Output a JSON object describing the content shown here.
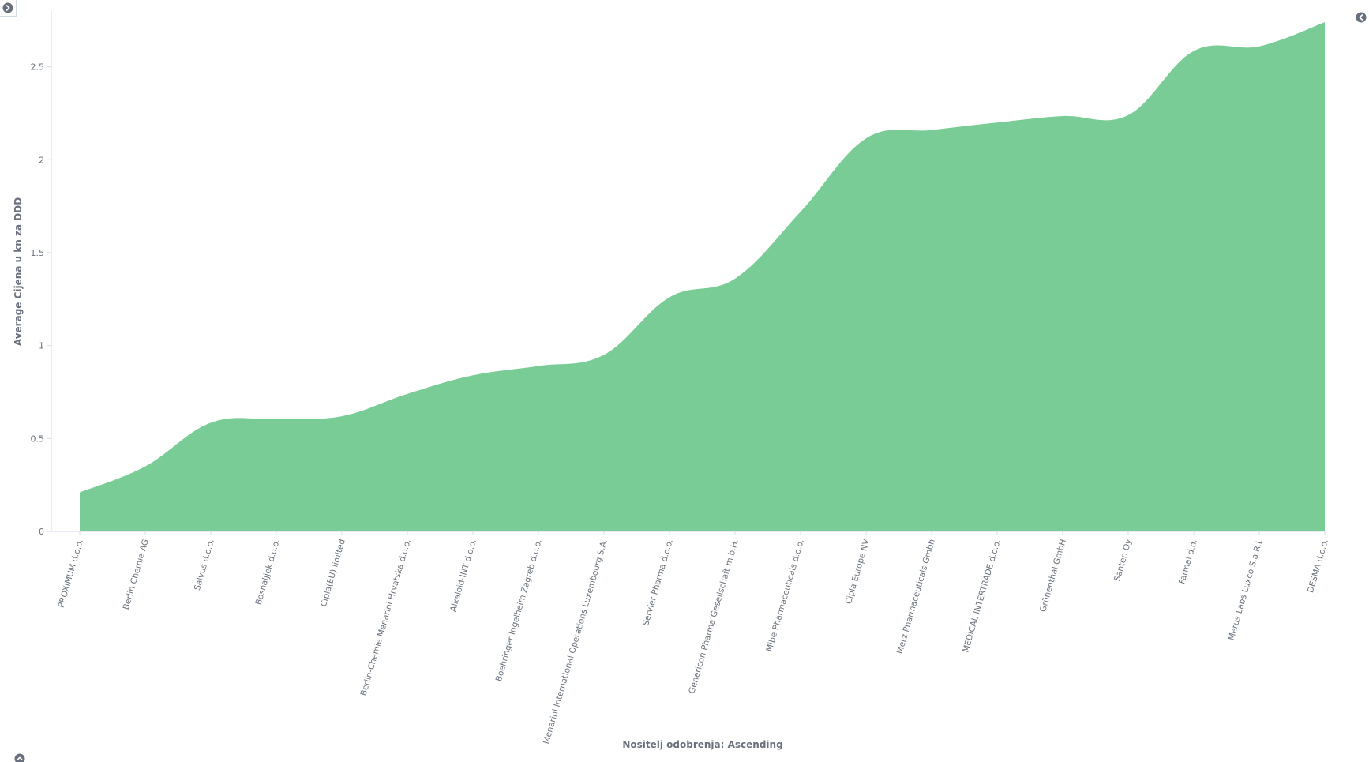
{
  "chart_data": {
    "type": "area",
    "ylabel": "Average Cijena u kn za DDD",
    "xlabel": "Nositelj odobrenja: Ascending",
    "ylim": [
      0,
      2.8
    ],
    "yticks": [
      0,
      0.5,
      1,
      1.5,
      2,
      2.5
    ],
    "ytick_labels": [
      "0",
      "0.5",
      "1",
      "1.5",
      "2",
      "2.5"
    ],
    "grid": false,
    "color": "#79cc95",
    "categories": [
      "PROXIMUM d.o.o.",
      "Berlin Chemie AG",
      "Salvus d.o.o.",
      "Bosnaljjek d.o.o.",
      "Cipla(EU) limited",
      "Berlin-Chemie Menarini Hrvatska d.o.o.",
      "Alkaloid-INT d.o.o.",
      "Boehringer Ingelheim Zagreb d.o.o.",
      "Menarini International Operations Luxembourg S.A.",
      "Servier Pharma d.o.o.",
      "Genericon Pharma Gesellschaft m.b.H.",
      "Mibe Pharmaceuticals d.o.o.",
      "Cipla Europe NV",
      "Merz Pharmaceuticals Gmbh",
      "MEDICAL INTERTRADE d.o.o.",
      "Grünenthal GmbH",
      "Santen Oy",
      "Farmal d.d.",
      "Merus Labs Luxco S.a.R.L",
      "DESMA d.o.o."
    ],
    "values": [
      0.21,
      0.35,
      0.585,
      0.605,
      0.62,
      0.74,
      0.84,
      0.89,
      0.95,
      1.26,
      1.36,
      1.72,
      2.115,
      2.16,
      2.2,
      2.235,
      2.24,
      2.585,
      2.61,
      2.74
    ]
  },
  "ui": {
    "top_left_icon": "chevron-right-circle-icon",
    "top_right_icon": "chevron-left-circle-icon",
    "bottom_left_icon": "chevron-up-circle-icon"
  }
}
